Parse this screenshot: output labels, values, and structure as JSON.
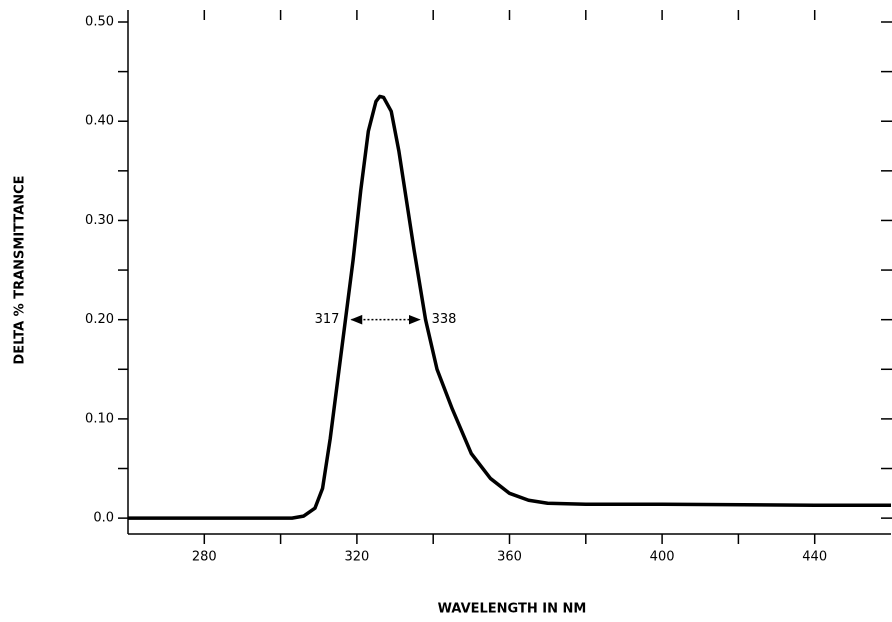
{
  "chart_data": {
    "type": "line",
    "x_label": "WAVELENGTH IN NM",
    "y_label": "DELTA % TRANSMITTANCE",
    "xlim": [
      260,
      460
    ],
    "ylim": [
      -0.016,
      0.5
    ],
    "xticks": [
      280,
      320,
      360,
      400,
      440
    ],
    "xticks_minor": [
      300,
      340,
      380,
      420
    ],
    "yticks": [
      {
        "value": 0,
        "label": "0.0"
      },
      {
        "value": 0.1,
        "label": "0.10"
      },
      {
        "value": 0.2,
        "label": "0.20"
      },
      {
        "value": 0.3,
        "label": "0.30"
      },
      {
        "value": 0.4,
        "label": "0.40"
      },
      {
        "value": 0.5,
        "label": "0.50"
      }
    ],
    "yticks_minor": [
      0.05,
      0.15,
      0.25,
      0.35,
      0.45
    ],
    "series": [
      {
        "color": "#000000",
        "x": [
          260,
          303,
          306,
          309,
          311,
          313,
          315,
          317,
          319,
          321,
          323,
          325,
          326,
          327,
          329,
          331,
          333,
          335,
          338,
          341,
          345,
          350,
          355,
          360,
          365,
          370,
          380,
          400,
          440,
          460
        ],
        "values": [
          0,
          0,
          0.002,
          0.01,
          0.03,
          0.08,
          0.14,
          0.2,
          0.26,
          0.33,
          0.39,
          0.42,
          0.425,
          0.424,
          0.41,
          0.37,
          0.32,
          0.27,
          0.2,
          0.15,
          0.11,
          0.065,
          0.04,
          0.025,
          0.018,
          0.015,
          0.014,
          0.014,
          0.013,
          0.013
        ]
      }
    ],
    "annotations": [
      {
        "text": "317",
        "x": 317,
        "y": 0.2
      },
      {
        "text": "338",
        "x": 338,
        "y": 0.2
      }
    ]
  }
}
